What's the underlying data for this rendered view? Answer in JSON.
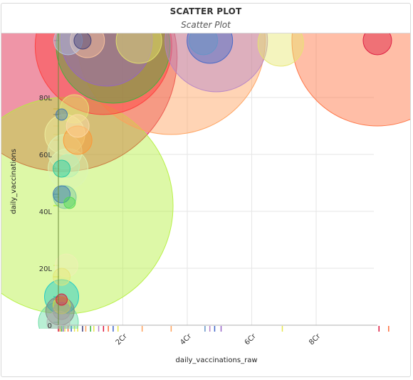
{
  "panel": {
    "title": "SCATTER PLOT",
    "subtitle": "Scatter Plot"
  },
  "chart_data": {
    "type": "scatter",
    "title": "SCATTER PLOT",
    "subtitle": "Scatter Plot",
    "xlabel": "daily_vaccinations_raw",
    "ylabel": "daily_vaccinations",
    "xlim": [
      -0.1,
      10
    ],
    "ylim": [
      0,
      100
    ],
    "x_unit": "Cr",
    "y_unit": "L",
    "x_ticks": [
      {
        "v": 2,
        "label": "2Cr"
      },
      {
        "v": 4,
        "label": "4Cr"
      },
      {
        "v": 6,
        "label": "6Cr"
      },
      {
        "v": 8,
        "label": "8Cr"
      }
    ],
    "y_ticks": [
      {
        "v": 0,
        "label": "0"
      },
      {
        "v": 20,
        "label": "20L"
      },
      {
        "v": 40,
        "label": "40L"
      },
      {
        "v": 60,
        "label": "60L"
      },
      {
        "v": 80,
        "label": "80L"
      }
    ],
    "grid": true,
    "legend": "none",
    "points": [
      {
        "x": 0.15,
        "y": 94,
        "size": 40,
        "color": "#dc143c"
      },
      {
        "x": 9.9,
        "y": 100,
        "size": 30,
        "color": "#ff6e3c"
      },
      {
        "x": 3.5,
        "y": 100,
        "size": 33,
        "color": "#ffa05a"
      },
      {
        "x": 1.4,
        "y": 98,
        "size": 24,
        "color": "#ff3c3c"
      },
      {
        "x": 1.7,
        "y": 98,
        "size": 20,
        "color": "#3cb43c"
      },
      {
        "x": 1.5,
        "y": 100,
        "size": 16,
        "color": "#9664c8"
      },
      {
        "x": 4.9,
        "y": 100,
        "size": 18,
        "color": "#b482c8"
      },
      {
        "x": 4.7,
        "y": 100,
        "size": 8,
        "color": "#3c64c8"
      },
      {
        "x": 4.5,
        "y": 100,
        "size": 5,
        "color": "#6496c8"
      },
      {
        "x": 6.9,
        "y": 99,
        "size": 8,
        "color": "#e6e66e"
      },
      {
        "x": 2.5,
        "y": 100,
        "size": 8,
        "color": "#e6e66e"
      },
      {
        "x": 0.3,
        "y": 100,
        "size": 5,
        "color": "#b4c8e6"
      },
      {
        "x": 0.75,
        "y": 100,
        "size": 3,
        "color": "#3c3c78"
      },
      {
        "x": 0.9,
        "y": 100,
        "size": 6,
        "color": "#ffc8a0"
      },
      {
        "x": 9.9,
        "y": 100,
        "size": 5,
        "color": "#dc143c"
      },
      {
        "x": 0.5,
        "y": 76,
        "size": 5,
        "color": "#e6e678"
      },
      {
        "x": 0.1,
        "y": 74,
        "size": 2,
        "color": "#3c78b4"
      },
      {
        "x": 0.6,
        "y": 70,
        "size": 4,
        "color": "#ffdcaa"
      },
      {
        "x": 0.2,
        "y": 67,
        "size": 7,
        "color": "#f0f0a0"
      },
      {
        "x": 0.6,
        "y": 65,
        "size": 5,
        "color": "#ff9632"
      },
      {
        "x": 0.2,
        "y": 61,
        "size": 6,
        "color": "#dcf0b4"
      },
      {
        "x": 0.3,
        "y": 55,
        "size": 7,
        "color": "#dcf5b4"
      },
      {
        "x": 0.3,
        "y": 56,
        "size": 4,
        "color": "#b4f0b4"
      },
      {
        "x": 0.1,
        "y": 55,
        "size": 3,
        "color": "#20c8a0"
      },
      {
        "x": 0.2,
        "y": 42,
        "size": 38,
        "color": "#b4f03c"
      },
      {
        "x": 0.2,
        "y": 45,
        "size": 4,
        "color": "#78c8a0"
      },
      {
        "x": 0.1,
        "y": 46,
        "size": 3,
        "color": "#3c78b4"
      },
      {
        "x": 0.35,
        "y": 43,
        "size": 2,
        "color": "#50dc50"
      },
      {
        "x": 0.25,
        "y": 21,
        "size": 4,
        "color": "#f0f0b4"
      },
      {
        "x": 0.1,
        "y": 17,
        "size": 3,
        "color": "#e6e678"
      },
      {
        "x": 0.1,
        "y": 10,
        "size": 6,
        "color": "#14c8c8"
      },
      {
        "x": 0.1,
        "y": 9,
        "size": 2,
        "color": "#dc143c"
      },
      {
        "x": 0.1,
        "y": 7,
        "size": 3,
        "color": "#dcdc3c"
      },
      {
        "x": 0.05,
        "y": 5,
        "size": 5,
        "color": "#808080"
      },
      {
        "x": 0.1,
        "y": 5,
        "size": 3,
        "color": "#a0a0a0"
      },
      {
        "x": 0.0,
        "y": 1,
        "size": 7,
        "color": "#64dca0"
      },
      {
        "x": 0.0,
        "y": 1,
        "size": 4,
        "color": "#b4b4b4"
      }
    ],
    "x_rug": [
      {
        "x": 0.0,
        "color": "#d2143c"
      },
      {
        "x": 0.05,
        "color": "#ff9632"
      },
      {
        "x": 0.1,
        "color": "#3cb43c"
      },
      {
        "x": 0.15,
        "color": "#9664c8"
      },
      {
        "x": 0.2,
        "color": "#e6e64b"
      },
      {
        "x": 0.3,
        "color": "#ff6e3c"
      },
      {
        "x": 0.4,
        "color": "#3c64c8"
      },
      {
        "x": 0.5,
        "color": "#e6e64b"
      },
      {
        "x": 0.6,
        "color": "#e6e64b"
      },
      {
        "x": 0.75,
        "color": "#3c3c78"
      },
      {
        "x": 0.85,
        "color": "#ffa05a"
      },
      {
        "x": 1.0,
        "color": "#3cb43c"
      },
      {
        "x": 1.1,
        "color": "#e6e64b"
      },
      {
        "x": 1.25,
        "color": "#b482c8"
      },
      {
        "x": 1.4,
        "color": "#dc143c"
      },
      {
        "x": 1.55,
        "color": "#ff6e3c"
      },
      {
        "x": 1.7,
        "color": "#3c64c8"
      },
      {
        "x": 1.85,
        "color": "#e6e64b"
      },
      {
        "x": 2.6,
        "color": "#ffa05a"
      },
      {
        "x": 3.5,
        "color": "#ffa05a"
      },
      {
        "x": 4.55,
        "color": "#6496c8"
      },
      {
        "x": 4.7,
        "color": "#b482c8"
      },
      {
        "x": 4.85,
        "color": "#3c64c8"
      },
      {
        "x": 5.05,
        "color": "#9664c8"
      },
      {
        "x": 6.95,
        "color": "#e6e64b"
      },
      {
        "x": 9.95,
        "color": "#dc143c"
      },
      {
        "x": 10.25,
        "color": "#ff6e3c"
      }
    ],
    "y_rug": [
      {
        "y": 1,
        "color": "#64dca0"
      },
      {
        "y": 5,
        "color": "#808080"
      },
      {
        "y": 7,
        "color": "#dcdc3c"
      },
      {
        "y": 9,
        "color": "#dc143c"
      },
      {
        "y": 10,
        "color": "#14c8c8"
      },
      {
        "y": 17,
        "color": "#e6e678"
      },
      {
        "y": 21,
        "color": "#f0f0b4"
      },
      {
        "y": 42,
        "color": "#b4f03c"
      },
      {
        "y": 45,
        "color": "#78c8a0"
      },
      {
        "y": 46,
        "color": "#3c78b4"
      },
      {
        "y": 55,
        "color": "#20c8a0"
      },
      {
        "y": 56,
        "color": "#b4f0b4"
      },
      {
        "y": 61,
        "color": "#dcf0b4"
      },
      {
        "y": 65,
        "color": "#ff9632"
      },
      {
        "y": 67,
        "color": "#f0f0a0"
      },
      {
        "y": 70,
        "color": "#ffdcaa"
      },
      {
        "y": 74,
        "color": "#3c78b4"
      },
      {
        "y": 76,
        "color": "#e6e678"
      },
      {
        "y": 100,
        "color": "#3c64c8"
      }
    ]
  }
}
